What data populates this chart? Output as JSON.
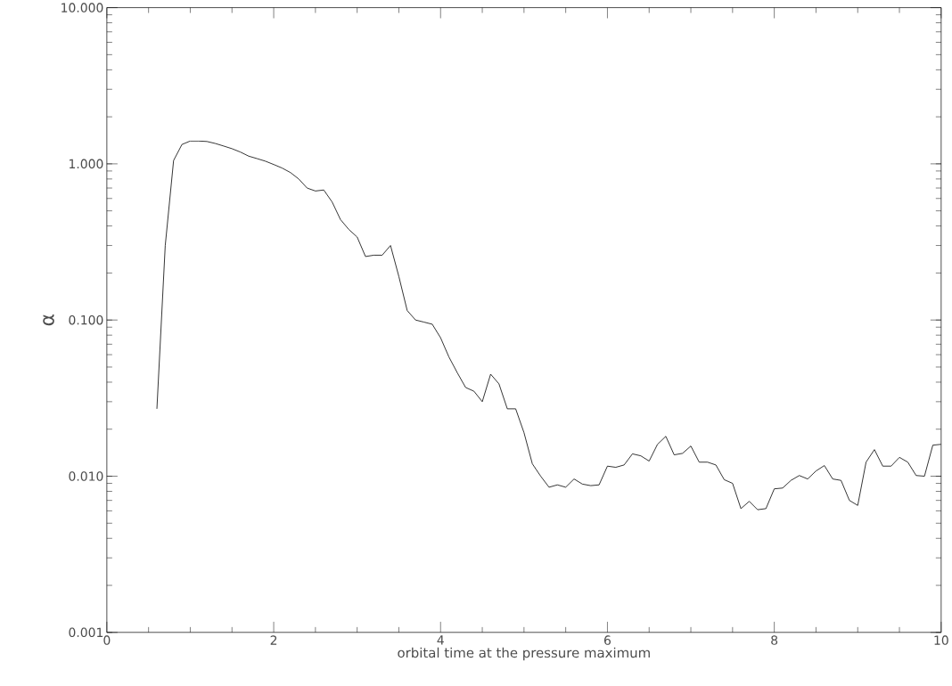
{
  "chart_data": {
    "type": "line",
    "xlabel": "orbital time at the pressure maximum",
    "ylabel": "α",
    "log": "y",
    "xlim": [
      0,
      10
    ],
    "ylim": [
      0.001,
      10
    ],
    "xticks": [
      0,
      2,
      4,
      6,
      8,
      10
    ],
    "yticks": [
      {
        "value": 0.001,
        "label": "0.001"
      },
      {
        "value": 0.01,
        "label": "0.010"
      },
      {
        "value": 0.1,
        "label": "0.100"
      },
      {
        "value": 1,
        "label": "1.000"
      },
      {
        "value": 10,
        "label": "10.000"
      }
    ],
    "grid": false,
    "marker": "none",
    "line_style": "solid",
    "series": [
      {
        "color": "#000000",
        "x": [
          0.6,
          0.7,
          0.8,
          0.9,
          1.0,
          1.1,
          1.2,
          1.3,
          1.4,
          1.5,
          1.6,
          1.7,
          1.8,
          1.9,
          2.0,
          2.1,
          2.2,
          2.3,
          2.4,
          2.5,
          2.6,
          2.7,
          2.8,
          2.9,
          3.0,
          3.1,
          3.2,
          3.3,
          3.4,
          3.5,
          3.6,
          3.7,
          3.8,
          3.9,
          4.0,
          4.1,
          4.2,
          4.3,
          4.4,
          4.5,
          4.6,
          4.7,
          4.8,
          4.9,
          5.0,
          5.1,
          5.2,
          5.3,
          5.4,
          5.5,
          5.6,
          5.7,
          5.8,
          5.9,
          6.0,
          6.1,
          6.2,
          6.3,
          6.4,
          6.5,
          6.6,
          6.7,
          6.8,
          6.9,
          7.0,
          7.1,
          7.2,
          7.3,
          7.4,
          7.5,
          7.6,
          7.7,
          7.8,
          7.9,
          8.0,
          8.1,
          8.2,
          8.3,
          8.4,
          8.5,
          8.6,
          8.7,
          8.8,
          8.9,
          9.0,
          9.1,
          9.2,
          9.3,
          9.4,
          9.5,
          9.6,
          9.7,
          9.8,
          9.9,
          10.0
        ],
        "values": [
          0.027,
          0.3,
          1.05,
          1.33,
          1.4,
          1.4,
          1.39,
          1.35,
          1.3,
          1.25,
          1.19,
          1.12,
          1.08,
          1.04,
          0.99,
          0.94,
          0.88,
          0.8,
          0.7,
          0.67,
          0.68,
          0.57,
          0.44,
          0.38,
          0.34,
          0.255,
          0.26,
          0.26,
          0.3,
          0.19,
          0.115,
          0.1,
          0.097,
          0.094,
          0.077,
          0.058,
          0.046,
          0.037,
          0.035,
          0.03,
          0.045,
          0.039,
          0.027,
          0.027,
          0.019,
          0.012,
          0.01,
          0.0085,
          0.0088,
          0.0085,
          0.0096,
          0.0089,
          0.0087,
          0.0088,
          0.0116,
          0.0114,
          0.0118,
          0.0139,
          0.0135,
          0.0125,
          0.016,
          0.018,
          0.0137,
          0.014,
          0.0156,
          0.0123,
          0.0123,
          0.0118,
          0.0095,
          0.009,
          0.0062,
          0.0069,
          0.0061,
          0.0062,
          0.0083,
          0.0084,
          0.0094,
          0.0101,
          0.0096,
          0.0108,
          0.0117,
          0.0096,
          0.0094,
          0.007,
          0.0065,
          0.0123,
          0.0148,
          0.0116,
          0.0116,
          0.0132,
          0.0123,
          0.0101,
          0.01,
          0.0158,
          0.016
        ]
      }
    ]
  }
}
